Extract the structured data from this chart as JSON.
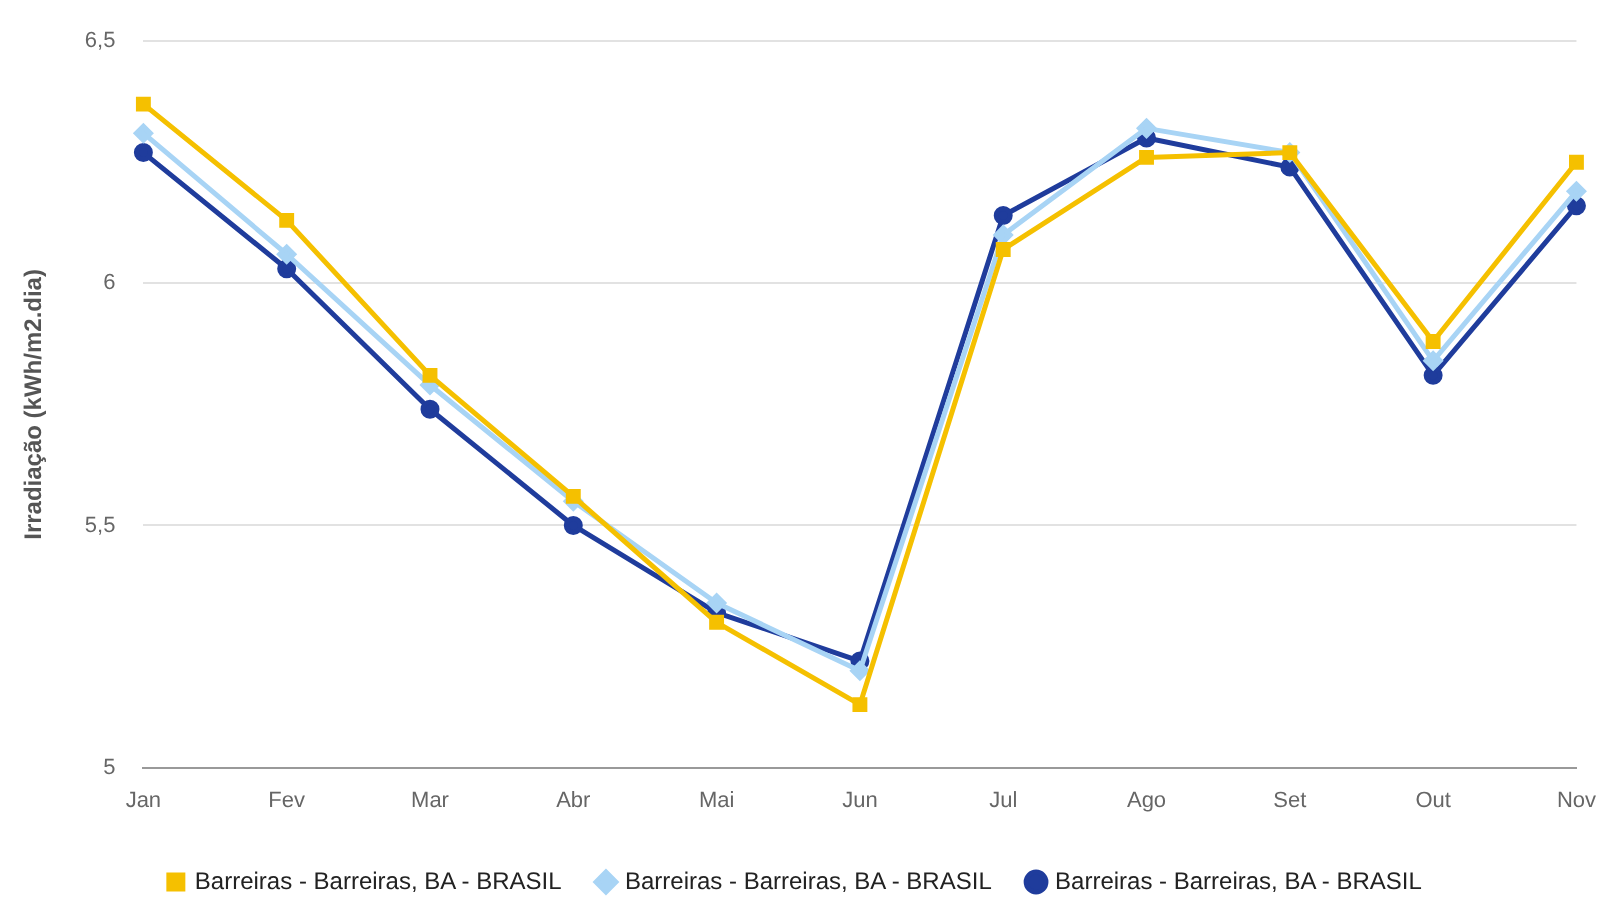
{
  "chart_data": {
    "type": "line",
    "ylabel": "Irradiação (kWh/m2.dia)",
    "categories": [
      "Jan",
      "Fev",
      "Mar",
      "Abr",
      "Mai",
      "Jun",
      "Jul",
      "Ago",
      "Set",
      "Out",
      "Nov"
    ],
    "series": [
      {
        "name": "Barreiras - Barreiras, BA - BRASIL",
        "color": "#1f3c9c",
        "marker": "circle",
        "values": [
          6.27,
          6.03,
          5.74,
          5.5,
          5.32,
          5.22,
          6.14,
          6.3,
          6.24,
          5.81,
          6.16
        ]
      },
      {
        "name": "Barreiras - Barreiras, BA - BRASIL",
        "color": "#a8d4f5",
        "marker": "diamond",
        "values": [
          6.31,
          6.06,
          5.79,
          5.55,
          5.34,
          5.2,
          6.1,
          6.32,
          6.27,
          5.84,
          6.19
        ]
      },
      {
        "name": "Barreiras - Barreiras, BA - BRASIL",
        "color": "#f5c000",
        "marker": "square",
        "values": [
          6.37,
          6.13,
          5.81,
          5.56,
          5.3,
          5.13,
          6.07,
          6.26,
          6.27,
          5.88,
          6.25
        ]
      }
    ],
    "ylim": [
      5,
      6.5
    ],
    "yticks": [
      5,
      {
        "value": 5.5,
        "label": "5,5"
      },
      6,
      {
        "value": 6.5,
        "label": "6,5"
      }
    ],
    "grid": "y",
    "legend": "bottom",
    "line_style": "solid"
  }
}
